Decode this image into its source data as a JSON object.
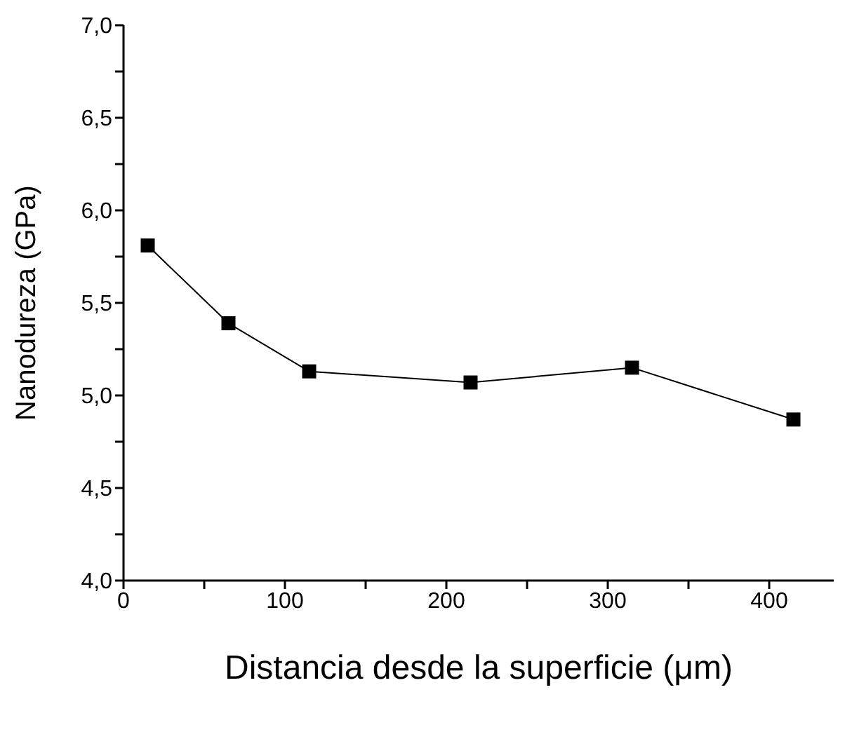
{
  "chart_data": {
    "type": "line",
    "xlabel": "Distancia desde la superficie (μm)",
    "ylabel": "Nanodureza (GPa)",
    "x": [
      15,
      65,
      115,
      215,
      315,
      415
    ],
    "series": [
      {
        "color": "#000000",
        "values": [
          5.81,
          5.39,
          5.13,
          5.07,
          5.15,
          4.87
        ]
      }
    ],
    "xlim": [
      0,
      440
    ],
    "xticks": [
      0,
      {
        "value": 50,
        "label": null
      },
      100,
      {
        "value": 150,
        "label": null
      },
      200,
      {
        "value": 250,
        "label": null
      },
      300,
      {
        "value": 350,
        "label": null
      },
      400
    ],
    "ylim": [
      4,
      7
    ],
    "yticks": [
      {
        "value": 4,
        "label": "4,0"
      },
      {
        "value": 4.25,
        "label": null
      },
      {
        "value": 4.5,
        "label": "4,5"
      },
      {
        "value": 4.75,
        "label": null
      },
      {
        "value": 5,
        "label": "5,0"
      },
      {
        "value": 5.25,
        "label": null
      },
      {
        "value": 5.5,
        "label": "5,5"
      },
      {
        "value": 5.75,
        "label": null
      },
      {
        "value": 6,
        "label": "6,0"
      },
      {
        "value": 6.25,
        "label": null
      },
      {
        "value": 6.5,
        "label": "6,5"
      },
      {
        "value": 6.75,
        "label": null
      },
      {
        "value": 7,
        "label": "7,0"
      }
    ],
    "grid": false,
    "legend": false,
    "marker": "square",
    "line_style": "solid"
  }
}
